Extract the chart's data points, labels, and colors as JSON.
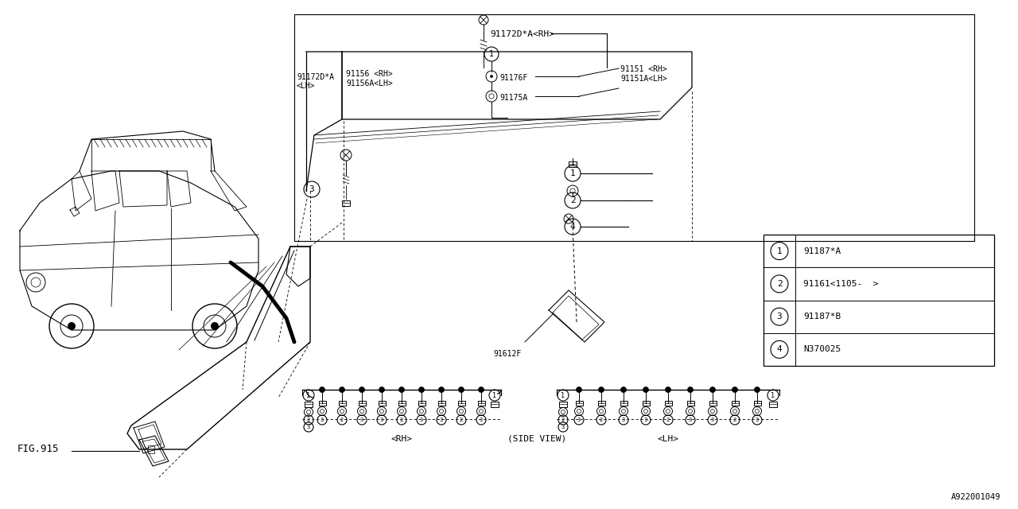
{
  "bg_color": "#ffffff",
  "line_color": "#000000",
  "fig_number": "FIG.915",
  "ref_code": "A922001049",
  "legend": [
    {
      "num": "1",
      "part": "91187*A"
    },
    {
      "num": "2",
      "part": "91161<1105-  >"
    },
    {
      "num": "3",
      "part": "91187*B"
    },
    {
      "num": "4",
      "part": "N370025"
    }
  ],
  "parts": {
    "91172D_A_RH": "91172D*A<RH>",
    "91172D_A_LH": "91172D*A",
    "91172D_A_LH2": "<LH>",
    "91156_RH": "91156 <RH>",
    "91156A_LH": "91156A<LH>",
    "91176F": "91176F",
    "91175A": "91175A",
    "91151_RH": "91151 <RH>",
    "91151A_LH": "91151A<LH>",
    "91612F": "91612F"
  },
  "bottom_labels": [
    "<RH>",
    "(SIDE VIEW)",
    "<LH>"
  ]
}
